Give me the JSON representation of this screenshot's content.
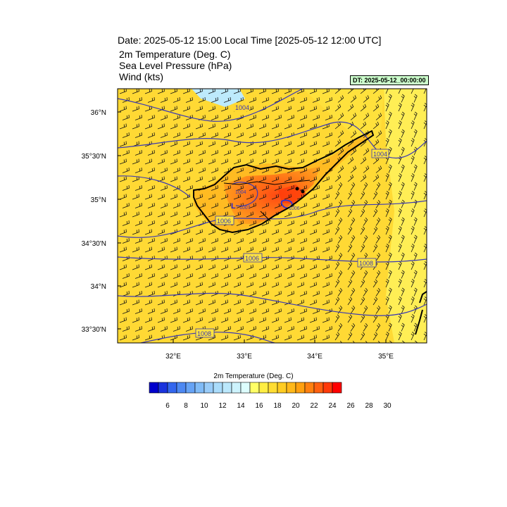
{
  "header": {
    "title": "Date: 2025-05-12  15:00 Local Time [2025-05-12  12:00 UTC]",
    "line1": "2m Temperature (Deg. C)",
    "line2": "Sea Level Pressure   (hPa)",
    "line3": "Wind   (kts)",
    "dt_label": "DT: 2025-05-12_00:00:00"
  },
  "map": {
    "lat_ticks": [
      "36°N",
      "35°30'N",
      "35°N",
      "34°30'N",
      "34°N",
      "33°30'N"
    ],
    "lon_ticks": [
      "32°E",
      "33°E",
      "34°E",
      "35°E"
    ],
    "isobar_labels": [
      "1004",
      "1004",
      "1004",
      "1007",
      "1006",
      "1006",
      "1006",
      "1008",
      "1008"
    ],
    "low_marker": "L",
    "colors": {
      "coast": "#000000",
      "isobar": "#3a3ab4",
      "barb": "#111111"
    }
  },
  "colorbar": {
    "title": "2m Temperature (Deg. C)",
    "tick_labels": [
      "6",
      "8",
      "10",
      "12",
      "14",
      "16",
      "18",
      "20",
      "22",
      "24",
      "26",
      "28",
      "30"
    ],
    "colors": [
      "#0000cc",
      "#1a33dd",
      "#3366ee",
      "#4d88f2",
      "#66a3f5",
      "#80bbf7",
      "#99ccf9",
      "#aadcfb",
      "#bbe8fc",
      "#cdf3fd",
      "#ddfdfd",
      "#ffff66",
      "#ffee44",
      "#ffdd33",
      "#ffcc22",
      "#ffb81a",
      "#ffa010",
      "#ff8010",
      "#ff6010",
      "#ff3a0a",
      "#ff0000"
    ]
  }
}
